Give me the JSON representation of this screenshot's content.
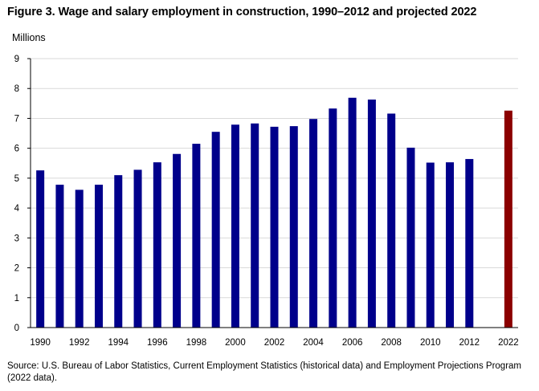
{
  "colors": {
    "historical_bar": "#00008b",
    "projected_bar": "#8b0000",
    "gridline": "#d9d9d9",
    "axis": "#000000"
  },
  "chart_data": {
    "type": "bar",
    "title": "Figure 3. Wage and salary employment in construction, 1990–2012 and projected 2022",
    "ylabel": "Millions",
    "xlabel": "",
    "ylim": [
      0,
      9
    ],
    "yticks": [
      "0",
      "1",
      "2",
      "3",
      "4",
      "5",
      "6",
      "7",
      "8",
      "9"
    ],
    "grid": true,
    "categories": [
      "1990",
      "1991",
      "1992",
      "1993",
      "1994",
      "1995",
      "1996",
      "1997",
      "1998",
      "1999",
      "2000",
      "2001",
      "2002",
      "2003",
      "2004",
      "2005",
      "2006",
      "2007",
      "2008",
      "2009",
      "2010",
      "2011",
      "2012",
      "2013",
      "2022"
    ],
    "xtick_labels": [
      "1990",
      "",
      "1992",
      "",
      "1994",
      "",
      "1996",
      "",
      "1998",
      "",
      "2000",
      "",
      "2002",
      "",
      "2004",
      "",
      "2006",
      "",
      "2008",
      "",
      "2010",
      "",
      "2012",
      "",
      "2022"
    ],
    "series": [
      {
        "values": [
          5.26,
          4.78,
          4.61,
          4.78,
          5.1,
          5.28,
          5.53,
          5.81,
          6.15,
          6.55,
          6.79,
          6.83,
          6.72,
          6.74,
          6.98,
          7.33,
          7.69,
          7.63,
          7.16,
          6.02,
          5.52,
          5.53,
          5.64,
          null,
          7.26
        ],
        "projected": [
          false,
          false,
          false,
          false,
          false,
          false,
          false,
          false,
          false,
          false,
          false,
          false,
          false,
          false,
          false,
          false,
          false,
          false,
          false,
          false,
          false,
          false,
          false,
          false,
          true
        ]
      }
    ],
    "source": "Source: U.S. Bureau of Labor Statistics, Current Employment Statistics (historical data) and Employment Projections Program (2022 data)."
  }
}
